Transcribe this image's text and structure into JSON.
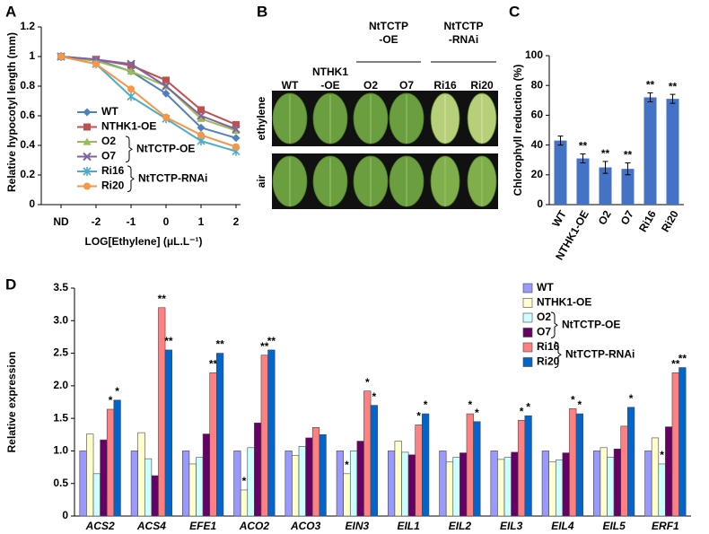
{
  "chart_data": [
    {
      "type": "line",
      "panel_label": "A",
      "ylabel": "Relative hypocotyl length (mm)",
      "xlabel": "LOG[Ethylene]  (μL.L⁻¹)",
      "categories": [
        "ND",
        "-2",
        "-1",
        "0",
        "1",
        "2"
      ],
      "series": [
        {
          "name": "WT",
          "color": "#4f81bd",
          "marker": "diamond",
          "values": [
            1,
            0.98,
            0.9,
            0.75,
            0.52,
            0.45
          ]
        },
        {
          "name": "NTHK1-OE",
          "color": "#c0504d",
          "marker": "square",
          "values": [
            1,
            0.98,
            0.94,
            0.84,
            0.64,
            0.54
          ]
        },
        {
          "name": "O2",
          "color": "#9bbb59",
          "marker": "triangle",
          "values": [
            1,
            0.97,
            0.9,
            0.8,
            0.58,
            0.5
          ]
        },
        {
          "name": "O7",
          "color": "#8064a2",
          "marker": "x",
          "values": [
            1,
            0.98,
            0.95,
            0.8,
            0.6,
            0.51
          ]
        },
        {
          "name": "Ri16",
          "color": "#4bacc6",
          "marker": "star",
          "values": [
            1,
            0.95,
            0.73,
            0.58,
            0.43,
            0.36
          ]
        },
        {
          "name": "Ri20",
          "color": "#f79646",
          "marker": "circle",
          "values": [
            1,
            0.95,
            0.78,
            0.59,
            0.47,
            0.39
          ]
        }
      ],
      "legend_groups": [
        "NtTCTP-OE",
        "NtTCTP-RNAi"
      ],
      "ylim": [
        0,
        1.2
      ],
      "yticks": [
        0,
        0.2,
        0.4,
        0.6,
        0.8,
        1,
        1.2
      ]
    },
    {
      "type": "bar",
      "panel_label": "C",
      "ylabel": "Chlorophyll reduction (%)",
      "categories": [
        "WT",
        "NTHK1-OE",
        "O2",
        "O7",
        "Ri16",
        "Ri20"
      ],
      "values": [
        43,
        31,
        25,
        24,
        72,
        71
      ],
      "errors": [
        3,
        3,
        4,
        4,
        3,
        3
      ],
      "significance": [
        null,
        "**",
        "**",
        "**",
        "**",
        "**"
      ],
      "color": "#4472c4",
      "ylim": [
        0,
        100
      ],
      "yticks": [
        0,
        20,
        40,
        60,
        80,
        100
      ]
    },
    {
      "type": "grouped_bar",
      "panel_label": "D",
      "ylabel": "Relative expression",
      "categories": [
        "ACS2",
        "ACS4",
        "EFE1",
        "ACO2",
        "ACO3",
        "EIN3",
        "EIL1",
        "EIL2",
        "EIL3",
        "EIL4",
        "EIL5",
        "ERF1"
      ],
      "series": [
        {
          "name": "WT",
          "color": "#9999ff",
          "values": [
            1,
            1,
            1,
            1,
            1,
            1,
            1,
            1,
            1,
            1,
            1,
            1
          ],
          "significance": [
            null,
            null,
            null,
            null,
            null,
            null,
            null,
            null,
            null,
            null,
            null,
            null
          ]
        },
        {
          "name": "NTHK1-OE",
          "color": "#ffffcc",
          "values": [
            1.26,
            1.28,
            0.8,
            0.4,
            0.93,
            0.65,
            1.15,
            0.83,
            0.87,
            0.83,
            1.05,
            1.2
          ],
          "significance": [
            null,
            null,
            null,
            "*",
            null,
            "*",
            null,
            null,
            null,
            null,
            null,
            null
          ]
        },
        {
          "name": "O2",
          "color": "#ccffff",
          "values": [
            0.65,
            0.88,
            0.9,
            1.05,
            1.07,
            1,
            0.98,
            0.9,
            0.9,
            0.86,
            0.9,
            0.8
          ],
          "significance": [
            null,
            null,
            null,
            null,
            null,
            null,
            null,
            null,
            null,
            null,
            null,
            "*"
          ]
        },
        {
          "name": "O7",
          "color": "#660066",
          "values": [
            1.17,
            0.62,
            1.26,
            1.43,
            1.2,
            1.15,
            0.94,
            0.97,
            0.98,
            0.97,
            1.03,
            1.37
          ],
          "significance": [
            null,
            null,
            null,
            null,
            null,
            null,
            null,
            null,
            null,
            null,
            null,
            null
          ]
        },
        {
          "name": "Ri16",
          "color": "#ff8080",
          "values": [
            1.64,
            3.2,
            2.2,
            2.47,
            1.36,
            1.92,
            1.4,
            1.57,
            1.47,
            1.65,
            1.38,
            2.2
          ],
          "significance": [
            "*",
            "**",
            "**",
            "**",
            null,
            "*",
            "*",
            "*",
            "*",
            "*",
            null,
            "**"
          ]
        },
        {
          "name": "Ri20",
          "color": "#0066cc",
          "values": [
            1.78,
            2.55,
            2.5,
            2.55,
            1.25,
            1.7,
            1.57,
            1.45,
            1.54,
            1.57,
            1.67,
            2.28
          ],
          "significance": [
            "*",
            "**",
            "**",
            "**",
            null,
            "*",
            "*",
            "*",
            "*",
            "*",
            "*",
            "**"
          ]
        }
      ],
      "legend_groups": [
        "NtTCTP-OE",
        "NtTCTP-RNAi"
      ],
      "ylim": [
        0,
        3.5
      ],
      "yticks": [
        0,
        0.5,
        {
          "value": 1,
          "label": "1.0"
        },
        1.5,
        {
          "value": 2,
          "label": "2.0"
        },
        2.5,
        {
          "value": 3,
          "label": "3.0"
        },
        3.5
      ]
    }
  ],
  "figure_b": {
    "panel_label": "B",
    "single_labels": [
      {
        "lines": [
          "WT"
        ]
      },
      {
        "lines": [
          "NTHK1",
          "-OE"
        ]
      }
    ],
    "groups": [
      {
        "lines": [
          "NtTCTP",
          "-OE"
        ],
        "members": [
          "O2",
          "O7"
        ]
      },
      {
        "lines": [
          "NtTCTP",
          "-RNAi"
        ],
        "members": [
          "Ri16",
          "Ri20"
        ]
      }
    ],
    "rows": [
      "ethylene",
      "air"
    ]
  }
}
